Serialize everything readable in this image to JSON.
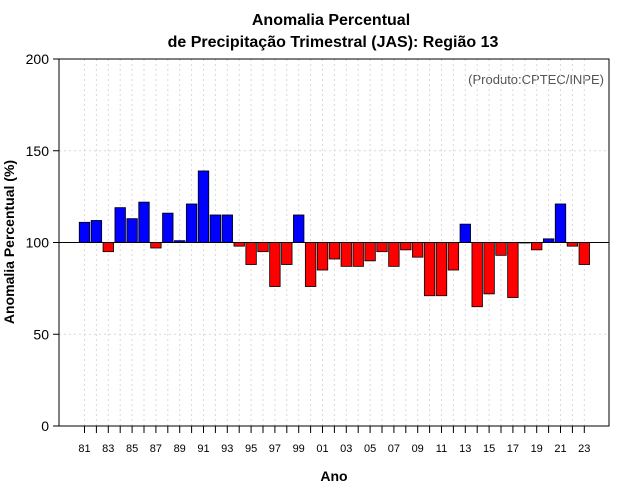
{
  "chart_data": {
    "type": "bar",
    "title_line1": "Anomalia Percentual",
    "title_line2": "de Precipitação Trimestral (JAS): Região 13",
    "xlabel": "Ano",
    "ylabel": "Anomalia Percentual (%)",
    "credit": "(Produto:CPTEC/INPE)",
    "ylim": [
      0,
      200
    ],
    "yticks": [
      0,
      50,
      100,
      150,
      200
    ],
    "baseline": 100,
    "grid": true,
    "colors": {
      "above": "#0000ff",
      "below": "#ff0000",
      "edge": "#000000",
      "grid": "#d9d9d9"
    },
    "categories": [
      "81",
      "82",
      "83",
      "84",
      "85",
      "86",
      "87",
      "88",
      "89",
      "90",
      "91",
      "92",
      "93",
      "94",
      "95",
      "96",
      "97",
      "98",
      "99",
      "00",
      "01",
      "02",
      "03",
      "04",
      "05",
      "06",
      "07",
      "08",
      "09",
      "10",
      "11",
      "12",
      "13",
      "14",
      "15",
      "16",
      "17",
      "18",
      "19",
      "20",
      "21",
      "22",
      "23"
    ],
    "xtick_labels": [
      "81",
      "83",
      "85",
      "87",
      "89",
      "91",
      "93",
      "95",
      "97",
      "99",
      "01",
      "03",
      "05",
      "07",
      "09",
      "11",
      "13",
      "15",
      "17",
      "19",
      "21",
      "23"
    ],
    "values": [
      111,
      112,
      95,
      119,
      113,
      122,
      97,
      116,
      101,
      121,
      139,
      115,
      115,
      98,
      88,
      95,
      76,
      88,
      115,
      76,
      85,
      91,
      87,
      87,
      90,
      95,
      87,
      96,
      92,
      71,
      71,
      85,
      110,
      65,
      72,
      93,
      70,
      100,
      96,
      102,
      121,
      98,
      88
    ]
  }
}
